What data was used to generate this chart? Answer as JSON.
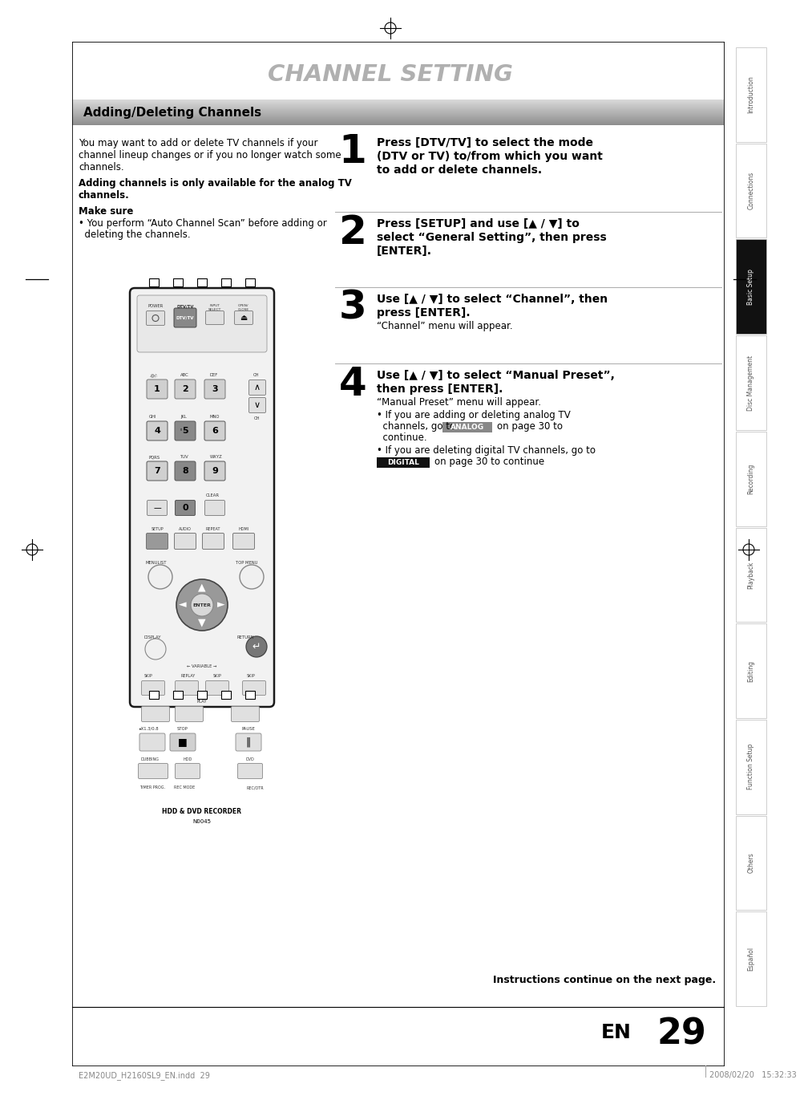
{
  "title": "CHANNEL SETTING",
  "section_title": "Adding/Deleting Channels",
  "bg_color": "#ffffff",
  "body_text": [
    "You may want to add or delete TV channels if your",
    "channel lineup changes or if you no longer watch some",
    "channels."
  ],
  "bold_text1": "Adding channels is only available for the analog TV",
  "bold_text2": "channels.",
  "make_sure_title": "Make sure",
  "make_sure_bullet": "• You perform “Auto Channel Scan” before adding or",
  "make_sure_bullet2": "  deleting the channels.",
  "steps": [
    {
      "num": "1",
      "lines_bold": [
        "Press [DTV/TV] to select the mode",
        "(DTV or TV) to/from which you want",
        "to add or delete channels."
      ]
    },
    {
      "num": "2",
      "lines_bold": [
        "Press [SETUP] and use [▲ / ▼] to",
        "select “General Setting”, then press",
        "[ENTER]."
      ]
    },
    {
      "num": "3",
      "lines_bold": [
        "Use [▲ / ▼] to select “Channel”, then",
        "press [ENTER]."
      ],
      "normal": "“Channel” menu will appear."
    },
    {
      "num": "4",
      "lines_bold": [
        "Use [▲ / ▼] to select “Manual Preset”,",
        "then press [ENTER]."
      ],
      "sub_normal": "“Manual Preset” menu will appear.",
      "bullet1a": "• If you are adding or deleting analog TV",
      "bullet1b": "  channels, go to",
      "analog_label": "ANALOG",
      "bullet1c": "on page 30 to",
      "bullet1d": "  continue.",
      "bullet2a": "• If you are deleting digital TV channels, go to",
      "digital_label": "DIGITAL",
      "bullet2b": "on page 30 to continue"
    }
  ],
  "sidebar_labels": [
    "Introduction",
    "Connections",
    "Basic Setup",
    "Disc\nManagement",
    "Recording",
    "Playback",
    "Editing",
    "Function Setup",
    "Others",
    "Español"
  ],
  "active_sidebar_idx": 2,
  "footer_left": "E2M20UD_H2160SL9_EN.indd  29",
  "footer_right": "2008/02/20   15:32:33",
  "footer_en": "EN",
  "footer_page": "29",
  "instructions_continue": "Instructions continue on the next page."
}
